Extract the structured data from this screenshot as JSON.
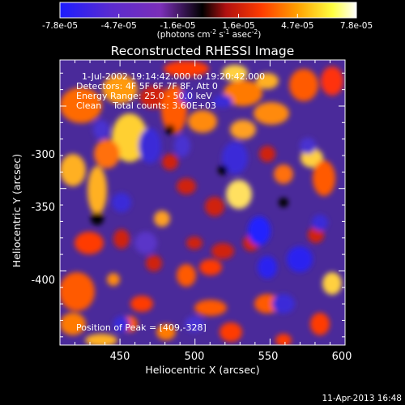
{
  "colorbar": {
    "tick_labels": [
      "-7.8e-05",
      "-4.7e-05",
      "-1.6e-05",
      "1.6e-05",
      "4.7e-05",
      "7.8e-05"
    ],
    "tick_values": [
      -7.8e-05,
      -4.7e-05,
      -1.6e-05,
      1.6e-05,
      4.7e-05,
      7.8e-05
    ],
    "range": [
      -7.8e-05,
      7.8e-05
    ],
    "unit_main": "(photons cm",
    "unit_exp1": "-2",
    "unit_mid": " s",
    "unit_exp2": "-1",
    "unit_tail": " asec",
    "unit_exp3": "-2",
    "unit_close": ")",
    "colors": [
      "#1c1cff",
      "#5a2bd0",
      "#7b2fb8",
      "#000000",
      "#b01010",
      "#ff3c00",
      "#ffa000",
      "#ffff40",
      "#ffffff"
    ]
  },
  "chart_data": {
    "type": "heatmap",
    "title": "Reconstructed RHESSI Image",
    "xlabel": "Heliocentric X (arcsec)",
    "ylabel": "Heliocentric Y (arcsec)",
    "xlim": [
      410,
      600
    ],
    "ylim": [
      -445,
      -272
    ],
    "x_ticks": [
      450,
      500,
      550,
      600
    ],
    "y_ticks": [
      -300,
      -350,
      -400
    ],
    "x_tick_labels": [
      "450",
      "500",
      "550",
      "600"
    ],
    "y_tick_labels": [
      "-300",
      "-350",
      "-400"
    ],
    "annotations": {
      "line1": "1-Jul-2002 19:14:42.000 to 19:20:42.000",
      "line2": "Detectors: 4F 5F 6F 7F 8F, Att 0",
      "line3": "Energy Range: 25.0 - 50.0 keV",
      "line4": "Clean    Total counts: 3.60E+03",
      "peak": "Position of Peak = [409,-328]"
    },
    "peak": [
      409,
      -328
    ],
    "grid": false
  },
  "footer": {
    "date": "11-Apr-2013 16:48"
  }
}
